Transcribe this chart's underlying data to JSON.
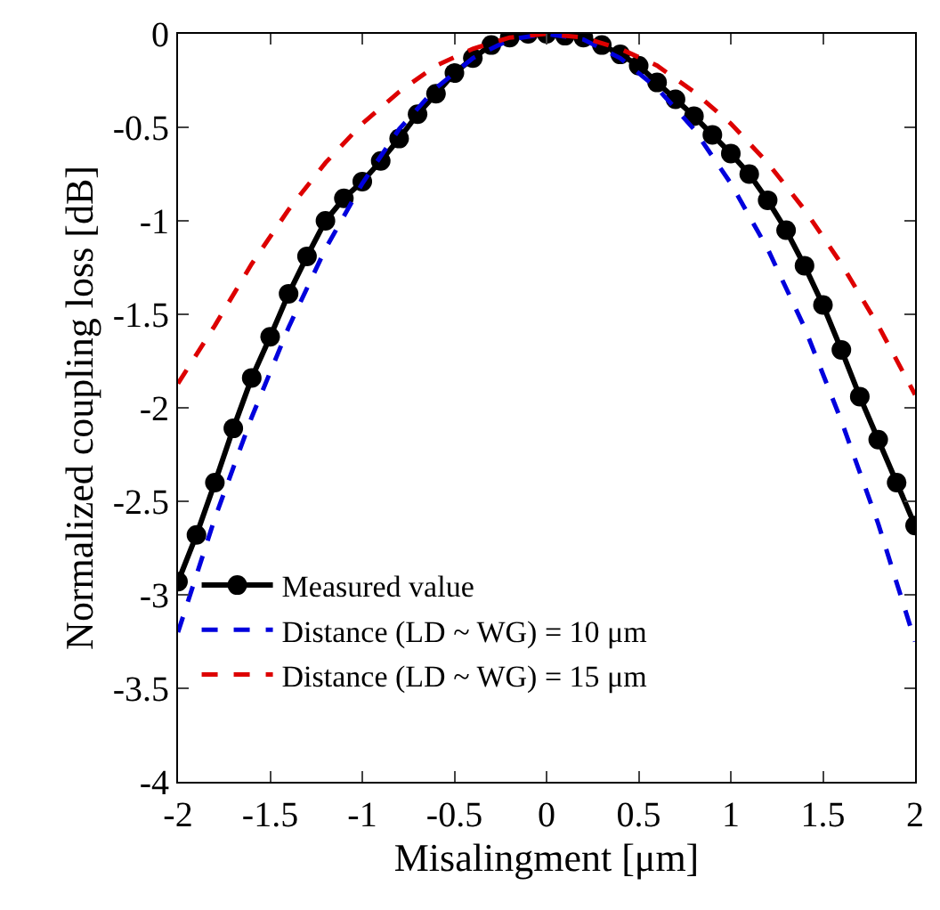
{
  "chart_data": {
    "type": "line",
    "xlabel": "Misalingment [μm]",
    "ylabel": "Normalized coupling loss [dB]",
    "xlim": [
      -2,
      2
    ],
    "xticks": [
      -2,
      -1.5,
      -1,
      -0.5,
      0,
      0.5,
      1,
      1.5,
      2
    ],
    "ylim": [
      -4,
      0
    ],
    "yticks": [
      -4,
      -3.5,
      -3,
      -2.5,
      -2,
      -1.5,
      -1,
      -0.5,
      0
    ],
    "legend": "bottom left",
    "series": [
      {
        "name": "Measured value",
        "color": "#000000",
        "marker": "circle",
        "line_style": "solid",
        "x": [
          -2,
          -1.9,
          -1.8,
          -1.7,
          -1.6,
          -1.5,
          -1.4,
          -1.3,
          -1.2,
          -1.1,
          -1,
          -0.9,
          -0.8,
          -0.7,
          -0.6,
          -0.5,
          -0.4,
          -0.3,
          -0.2,
          -0.1,
          0,
          0.1,
          0.2,
          0.3,
          0.4,
          0.5,
          0.6,
          0.7,
          0.8,
          0.9,
          1,
          1.1,
          1.2,
          1.3,
          1.4,
          1.5,
          1.6,
          1.7,
          1.8,
          1.9,
          2
        ],
        "values": [
          -2.93,
          -2.68,
          -2.4,
          -2.11,
          -1.84,
          -1.62,
          -1.39,
          -1.19,
          -1.0,
          -0.88,
          -0.79,
          -0.68,
          -0.56,
          -0.43,
          -0.32,
          -0.21,
          -0.13,
          -0.06,
          -0.02,
          0,
          0,
          -0.01,
          -0.02,
          -0.06,
          -0.11,
          -0.17,
          -0.26,
          -0.35,
          -0.44,
          -0.54,
          -0.64,
          -0.75,
          -0.89,
          -1.05,
          -1.24,
          -1.45,
          -1.69,
          -1.94,
          -2.17,
          -2.4,
          -2.63
        ]
      },
      {
        "name": "Distance (LD ~ WG) = 10 μm",
        "color": "#0000dd",
        "marker": "none",
        "line_style": "dashed",
        "x": [
          -2,
          -1.8,
          -1.6,
          -1.4,
          -1.2,
          -1,
          -0.8,
          -0.6,
          -0.4,
          -0.2,
          0,
          0.2,
          0.4,
          0.6,
          0.8,
          1,
          1.2,
          1.4,
          1.6,
          1.8,
          2
        ],
        "values": [
          -3.2,
          -2.59,
          -2.05,
          -1.57,
          -1.15,
          -0.8,
          -0.51,
          -0.29,
          -0.13,
          -0.03,
          0,
          -0.03,
          -0.13,
          -0.29,
          -0.51,
          -0.8,
          -1.15,
          -1.57,
          -2.07,
          -2.62,
          -3.25
        ]
      },
      {
        "name": "Distance (LD ~ WG) = 15 μm",
        "color": "#dd0000",
        "marker": "none",
        "line_style": "dashed",
        "x": [
          -2,
          -1.8,
          -1.6,
          -1.4,
          -1.2,
          -1,
          -0.8,
          -0.6,
          -0.4,
          -0.2,
          0,
          0.2,
          0.4,
          0.6,
          0.8,
          1,
          1.2,
          1.4,
          1.6,
          1.8,
          2
        ],
        "values": [
          -1.87,
          -1.56,
          -1.23,
          -0.94,
          -0.69,
          -0.48,
          -0.31,
          -0.17,
          -0.08,
          -0.02,
          0,
          -0.02,
          -0.08,
          -0.17,
          -0.31,
          -0.48,
          -0.69,
          -0.94,
          -1.23,
          -1.56,
          -1.93
        ]
      }
    ]
  }
}
